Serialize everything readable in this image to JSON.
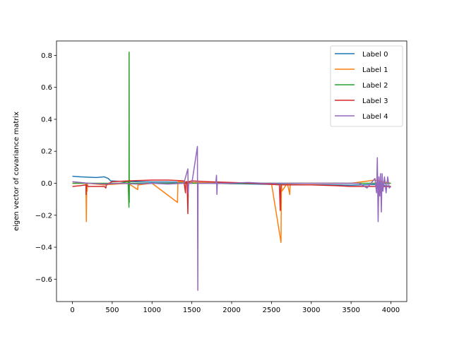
{
  "chart_data": {
    "type": "line",
    "title": "",
    "xlabel": "",
    "ylabel": "eigen vector of covariance matrix",
    "xlim": [
      -200,
      4200
    ],
    "ylim": [
      -0.74,
      0.89
    ],
    "xticks": [
      0,
      500,
      1000,
      1500,
      2000,
      2500,
      3000,
      3500,
      4000
    ],
    "xtick_labels": [
      "0",
      "500",
      "1000",
      "1500",
      "2000",
      "2500",
      "3000",
      "3500",
      "4000"
    ],
    "yticks": [
      -0.6,
      -0.4,
      -0.2,
      0.0,
      0.2,
      0.4,
      0.6,
      0.8
    ],
    "ytick_labels": [
      "−0.6",
      "−0.4",
      "−0.2",
      "0.0",
      "0.2",
      "0.4",
      "0.6",
      "0.8"
    ],
    "grid": false,
    "legend_position": "top-right",
    "series": [
      {
        "name": "Label 0",
        "color": "#1f77b4",
        "x": [
          0,
          100,
          200,
          300,
          400,
          450,
          480,
          600,
          800,
          1000,
          1200,
          1500,
          1800,
          2000,
          2300,
          2600,
          2900,
          3200,
          3500,
          3800,
          4000
        ],
        "y": [
          0.044,
          0.04,
          0.038,
          0.036,
          0.04,
          0.03,
          0.015,
          0.012,
          0.01,
          0.008,
          0.008,
          0.005,
          0.0,
          -0.003,
          -0.005,
          -0.008,
          -0.01,
          -0.01,
          -0.012,
          -0.008,
          -0.02
        ]
      },
      {
        "name": "Label 1",
        "color": "#ff7f0e",
        "x": [
          0,
          170,
          175,
          180,
          185,
          190,
          400,
          700,
          820,
          825,
          830,
          1000,
          1320,
          1325,
          1330,
          1500,
          2000,
          2500,
          2620,
          2625,
          2630,
          2700,
          2730,
          2735,
          2740,
          3000,
          3500,
          3800,
          4000
        ],
        "y": [
          0.0,
          0.0,
          -0.24,
          0.0,
          -0.05,
          0.0,
          -0.01,
          0.0,
          -0.04,
          0.0,
          -0.01,
          0.0,
          -0.12,
          0.0,
          0.01,
          0.005,
          0.0,
          0.0,
          -0.37,
          0.0,
          -0.05,
          0.0,
          -0.07,
          0.0,
          0.0,
          0.0,
          0.0,
          0.02,
          0.0
        ]
      },
      {
        "name": "Label 2",
        "color": "#2ca02c",
        "x": [
          0,
          300,
          600,
          700,
          710,
          712,
          714,
          716,
          720,
          800,
          1000,
          1500,
          2000,
          2500,
          3000,
          3500,
          4000
        ],
        "y": [
          0.0,
          0.0,
          0.0,
          0.01,
          -0.15,
          0.82,
          -0.12,
          0.02,
          0.0,
          0.0,
          0.0,
          0.0,
          0.0,
          0.0,
          0.0,
          0.0,
          0.0
        ]
      },
      {
        "name": "Label 3",
        "color": "#d62728",
        "x": [
          0,
          100,
          170,
          172,
          174,
          200,
          300,
          400,
          420,
          425,
          500,
          700,
          1000,
          1200,
          1400,
          1420,
          1425,
          1440,
          1450,
          1455,
          1460,
          1500,
          1700,
          2000,
          2300,
          2600,
          2610,
          2615,
          2620,
          2700,
          3000,
          3300,
          3500,
          3700,
          4000
        ],
        "y": [
          -0.02,
          -0.015,
          -0.01,
          -0.07,
          -0.01,
          -0.02,
          -0.02,
          -0.02,
          -0.03,
          -0.01,
          0.01,
          0.015,
          0.02,
          0.02,
          0.015,
          -0.06,
          0.01,
          0.01,
          -0.19,
          0.0,
          0.01,
          0.015,
          0.01,
          0.005,
          0.0,
          -0.01,
          -0.17,
          -0.05,
          -0.01,
          -0.01,
          -0.01,
          -0.015,
          -0.02,
          -0.02,
          -0.02
        ]
      },
      {
        "name": "Label 4",
        "color": "#9467bd",
        "x": [
          0,
          200,
          400,
          600,
          800,
          1000,
          1200,
          1400,
          1450,
          1455,
          1460,
          1500,
          1570,
          1575,
          1578,
          1580,
          1600,
          1800,
          1810,
          1815,
          1820,
          2000,
          2200,
          2400,
          2600,
          2800,
          3000,
          3200,
          3400,
          3600,
          3700,
          3800,
          3820,
          3830,
          3840,
          3850,
          3860,
          3870,
          3880,
          3890,
          3900,
          3920,
          3940,
          3960,
          3980,
          4000
        ],
        "y": [
          0.01,
          0.0,
          -0.005,
          0.0,
          -0.005,
          0.0,
          -0.005,
          0.0,
          0.09,
          -0.06,
          0.0,
          0.0,
          0.23,
          -0.67,
          0.0,
          0.0,
          0.0,
          0.0,
          0.05,
          -0.07,
          0.0,
          0.0,
          0.005,
          0.0,
          0.0,
          0.0,
          0.0,
          0.0,
          0.0,
          0.0,
          -0.03,
          0.03,
          -0.06,
          0.16,
          -0.24,
          0.04,
          -0.08,
          0.06,
          -0.18,
          0.06,
          -0.05,
          0.04,
          -0.06,
          0.04,
          -0.03,
          -0.02
        ]
      }
    ]
  }
}
